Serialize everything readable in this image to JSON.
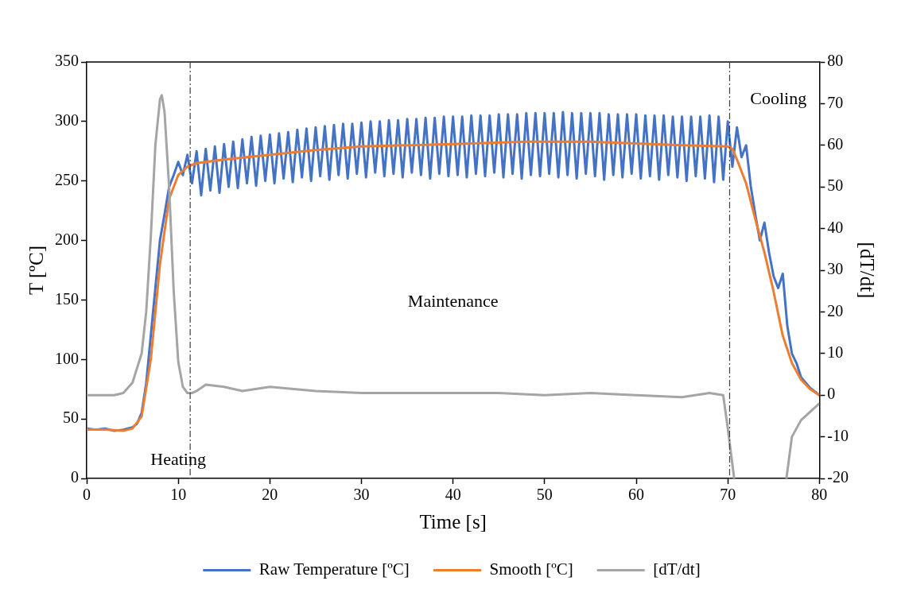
{
  "chart_data": {
    "type": "line",
    "xlabel": "Time [s]",
    "ylabel": "T [ºC]",
    "y2label": "[dT/dt]",
    "xlim": [
      0,
      80
    ],
    "xticks": [
      0,
      10,
      20,
      30,
      40,
      50,
      60,
      70,
      80
    ],
    "ylim": [
      0,
      350
    ],
    "yticks": [
      0,
      50,
      100,
      150,
      200,
      250,
      300,
      350
    ],
    "y2lim": [
      -20,
      80
    ],
    "y2ticks": [
      -20,
      -10,
      0,
      10,
      20,
      30,
      40,
      50,
      60,
      70,
      80
    ],
    "grid": false,
    "legend": "bottom",
    "marker": "none",
    "line_style": "solid",
    "ref_lines": [
      {
        "axis": "x",
        "value": 11.3,
        "color": "#404040",
        "line_style": "dashed"
      },
      {
        "axis": "x",
        "value": 70.2,
        "color": "#404040",
        "line_style": "dashed"
      }
    ],
    "annotations": [
      "Heating",
      "Maintenance",
      "Cooling"
    ],
    "series": [
      {
        "name": "Raw Temperature [ºC]",
        "color": "#4472c4",
        "x": [
          0,
          1,
          2,
          3,
          4,
          5,
          5.5,
          6,
          6.5,
          7,
          7.5,
          8,
          8.5,
          9,
          9.5,
          10,
          10.5,
          11,
          11.5,
          12,
          12.5,
          13,
          13.5,
          14,
          14.5,
          15,
          15.5,
          16,
          16.5,
          17,
          17.5,
          18,
          18.5,
          19,
          19.5,
          20,
          20.5,
          21,
          21.5,
          22,
          22.5,
          23,
          23.5,
          24,
          24.5,
          25,
          25.5,
          26,
          26.5,
          27,
          27.5,
          28,
          28.5,
          29,
          29.5,
          30,
          30.5,
          31,
          31.5,
          32,
          32.5,
          33,
          33.5,
          34,
          34.5,
          35,
          35.5,
          36,
          36.5,
          37,
          37.5,
          38,
          38.5,
          39,
          39.5,
          40,
          40.5,
          41,
          41.5,
          42,
          42.5,
          43,
          43.5,
          44,
          44.5,
          45,
          45.5,
          46,
          46.5,
          47,
          47.5,
          48,
          48.5,
          49,
          49.5,
          50,
          50.5,
          51,
          51.5,
          52,
          52.5,
          53,
          53.5,
          54,
          54.5,
          55,
          55.5,
          56,
          56.5,
          57,
          57.5,
          58,
          58.5,
          59,
          59.5,
          60,
          60.5,
          61,
          61.5,
          62,
          62.5,
          63,
          63.5,
          64,
          64.5,
          65,
          65.5,
          66,
          66.5,
          67,
          67.5,
          68,
          68.5,
          69,
          69.5,
          70,
          70.5,
          71,
          71.5,
          72,
          72.5,
          73,
          73.5,
          74,
          74.5,
          75,
          75.5,
          76,
          76.5,
          77,
          77.5,
          78,
          79,
          80
        ],
        "values": [
          42,
          41,
          42,
          40,
          41,
          43,
          46,
          55,
          80,
          120,
          160,
          200,
          222,
          245,
          255,
          266,
          255,
          272,
          248,
          275,
          238,
          277,
          242,
          279,
          240,
          281,
          245,
          283,
          244,
          285,
          248,
          287,
          246,
          288,
          250,
          289,
          248,
          290,
          252,
          291,
          249,
          293,
          253,
          294,
          250,
          295,
          254,
          296,
          251,
          297,
          255,
          298,
          252,
          298,
          256,
          299,
          253,
          300,
          257,
          300,
          254,
          301,
          256,
          301,
          253,
          302,
          257,
          302,
          255,
          303,
          252,
          303,
          256,
          304,
          254,
          304,
          255,
          304,
          253,
          305,
          256,
          305,
          254,
          305,
          257,
          306,
          253,
          306,
          256,
          306,
          252,
          307,
          255,
          307,
          254,
          307,
          256,
          307,
          253,
          308,
          255,
          307,
          252,
          307,
          256,
          307,
          254,
          307,
          251,
          306,
          255,
          306,
          253,
          306,
          256,
          306,
          252,
          305,
          254,
          305,
          251,
          305,
          255,
          304,
          253,
          304,
          250,
          304,
          254,
          304,
          252,
          305,
          249,
          304,
          251,
          300,
          262,
          295,
          270,
          280,
          246,
          222,
          200,
          215,
          190,
          170,
          160,
          172,
          128,
          105,
          97,
          85,
          76,
          70
        ]
      },
      {
        "name": "Smooth [ºC]",
        "color": "#ed7d31",
        "x": [
          0,
          2,
          4,
          5,
          6,
          7,
          8,
          9,
          10,
          11,
          12,
          15,
          20,
          25,
          30,
          40,
          48,
          55,
          65,
          70,
          70.5,
          71,
          72,
          73,
          74,
          75,
          76,
          77,
          78,
          79,
          80
        ],
        "values": [
          41,
          41,
          40,
          42,
          52,
          100,
          180,
          235,
          255,
          262,
          265,
          268,
          272,
          276,
          279,
          281,
          283,
          283,
          280,
          279,
          277,
          268,
          248,
          218,
          190,
          157,
          120,
          97,
          83,
          75,
          70
        ]
      },
      {
        "name": "[dT/dt]",
        "color": "#a5a5a5",
        "axis": "y2",
        "x": [
          0,
          2,
          3,
          4,
          5,
          6,
          6.5,
          7,
          7.5,
          8,
          8.2,
          8.5,
          9,
          9.5,
          10,
          10.5,
          11,
          11.5,
          12,
          13,
          15,
          17,
          20,
          25,
          30,
          35,
          40,
          45,
          50,
          55,
          60,
          65,
          68,
          69.5,
          70,
          70.7,
          70.8,
          76.3,
          76.4,
          77,
          78,
          79,
          80
        ],
        "values": [
          0,
          0,
          0,
          0.5,
          3,
          10,
          20,
          38,
          60,
          71,
          72,
          68,
          50,
          25,
          8,
          2,
          0.5,
          0.5,
          1,
          2.5,
          2,
          1,
          2,
          1,
          0.5,
          0.5,
          0.5,
          0.5,
          0,
          0.5,
          0,
          -0.5,
          0.5,
          0,
          -8,
          -20,
          null,
          null,
          -20,
          -10,
          -6,
          -4,
          -2
        ]
      }
    ]
  }
}
